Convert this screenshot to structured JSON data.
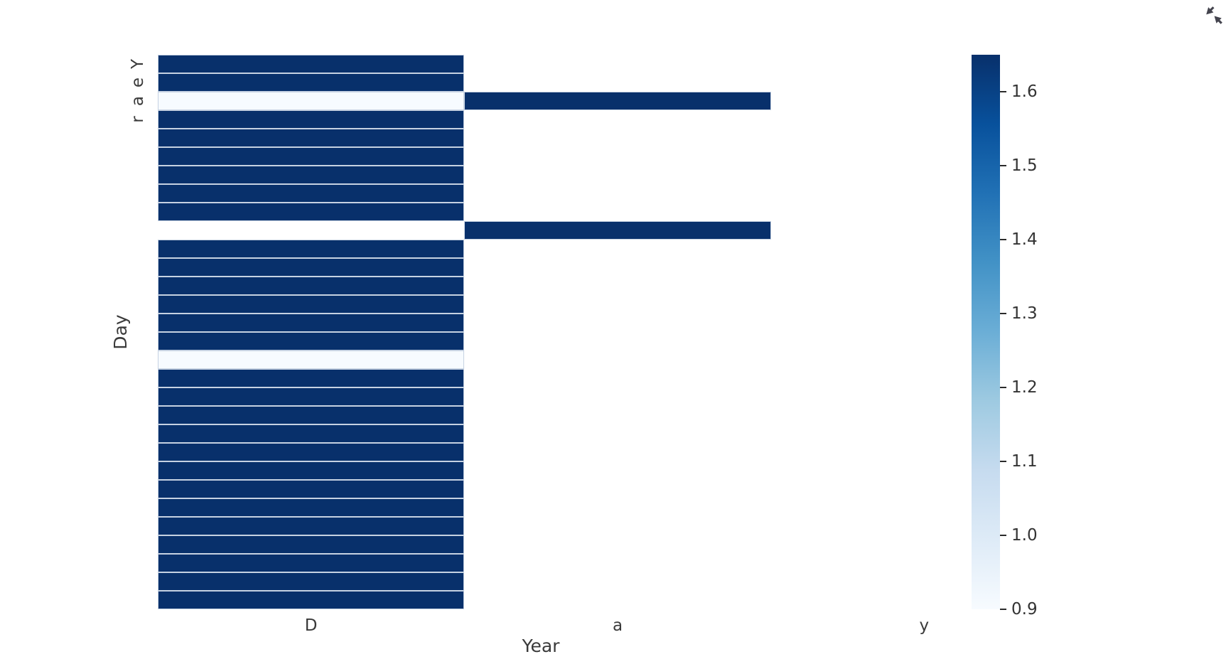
{
  "icons": {
    "top_right_icon": "collapse-diagonal-arrows"
  },
  "colors": {
    "background": "#ffffff",
    "cell_high": "#08306b",
    "cell_low": "#f7fbff",
    "cell_border": "#c6d2e2",
    "tick_text": "#3a3a3a",
    "icon": "#44444e"
  },
  "chart_data": {
    "type": "heatmap",
    "title": "",
    "colormap": "Blues",
    "grid": false,
    "x_axis": {
      "label": "Year",
      "tick_labels": [
        "D",
        "a",
        "y"
      ]
    },
    "y_axis": {
      "label": "Day",
      "tick_labels": [
        "Y",
        "e",
        "a",
        "r"
      ],
      "tick_rows": [
        0,
        1,
        2,
        3
      ],
      "tick_rotation_deg": 90
    },
    "n_rows": 30,
    "n_cols": 3,
    "colorbar": {
      "position": "right",
      "vmin": 0.9,
      "vmax": 1.65,
      "ticks": [
        "1.6",
        "1.5",
        "1.4",
        "1.3",
        "1.2",
        "1.1",
        "1.0",
        "0.9"
      ]
    },
    "matrix": [
      [
        1.65,
        null,
        null
      ],
      [
        1.65,
        null,
        null
      ],
      [
        0.9,
        1.65,
        null
      ],
      [
        1.65,
        null,
        null
      ],
      [
        1.65,
        null,
        null
      ],
      [
        1.65,
        null,
        null
      ],
      [
        1.65,
        null,
        null
      ],
      [
        1.65,
        null,
        null
      ],
      [
        1.65,
        null,
        null
      ],
      [
        null,
        1.65,
        null
      ],
      [
        1.65,
        null,
        null
      ],
      [
        1.65,
        null,
        null
      ],
      [
        1.65,
        null,
        null
      ],
      [
        1.65,
        null,
        null
      ],
      [
        1.65,
        null,
        null
      ],
      [
        1.65,
        null,
        null
      ],
      [
        0.9,
        null,
        null
      ],
      [
        1.65,
        null,
        null
      ],
      [
        1.65,
        null,
        null
      ],
      [
        1.65,
        null,
        null
      ],
      [
        1.65,
        null,
        null
      ],
      [
        1.65,
        null,
        null
      ],
      [
        1.65,
        null,
        null
      ],
      [
        1.65,
        null,
        null
      ],
      [
        1.65,
        null,
        null
      ],
      [
        1.65,
        null,
        null
      ],
      [
        1.65,
        null,
        null
      ],
      [
        1.65,
        null,
        null
      ],
      [
        1.65,
        null,
        null
      ],
      [
        1.65,
        null,
        null
      ]
    ]
  }
}
